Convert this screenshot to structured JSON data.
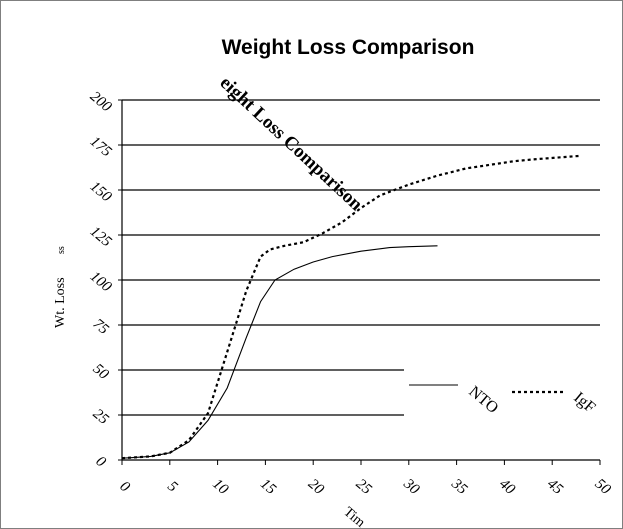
{
  "chart_data": {
    "type": "line",
    "title": "Weight Loss Comparison",
    "overlay_title": "eight Loss Comparison",
    "xlabel": "Tim",
    "ylabel": "Wt. Loss",
    "ylabel_suffix": "ss",
    "xlim": [
      0,
      50
    ],
    "ylim": [
      0,
      200
    ],
    "x_ticks": [
      "0",
      "5",
      "10",
      "15",
      "20",
      "25",
      "30",
      "35",
      "40",
      "45",
      "50"
    ],
    "y_ticks": [
      "0",
      "25",
      "50",
      "75",
      "100",
      "125",
      "150",
      "175",
      "200"
    ],
    "grid": true,
    "legend_position": "right",
    "series": [
      {
        "name": "NTO",
        "style": "solid",
        "points": [
          [
            0,
            1
          ],
          [
            3,
            2
          ],
          [
            5,
            4
          ],
          [
            7,
            10
          ],
          [
            9,
            22
          ],
          [
            11,
            40
          ],
          [
            13,
            68
          ],
          [
            14.5,
            88
          ],
          [
            16,
            100
          ],
          [
            18,
            106
          ],
          [
            20,
            110
          ],
          [
            22,
            113
          ],
          [
            25,
            116
          ],
          [
            28,
            118
          ],
          [
            30,
            118.5
          ],
          [
            33,
            119
          ]
        ]
      },
      {
        "name": "IgF",
        "style": "dotted",
        "points": [
          [
            0,
            1
          ],
          [
            3,
            2
          ],
          [
            5,
            4
          ],
          [
            7,
            11
          ],
          [
            9,
            26
          ],
          [
            11,
            60
          ],
          [
            13,
            94
          ],
          [
            14.5,
            113
          ],
          [
            15.5,
            117
          ],
          [
            17,
            119
          ],
          [
            19,
            121
          ],
          [
            21,
            126
          ],
          [
            23,
            132
          ],
          [
            25,
            140
          ],
          [
            27,
            147
          ],
          [
            30,
            153
          ],
          [
            33,
            158
          ],
          [
            36,
            162
          ],
          [
            41,
            166
          ],
          [
            43,
            167
          ],
          [
            48,
            169
          ]
        ]
      }
    ]
  }
}
